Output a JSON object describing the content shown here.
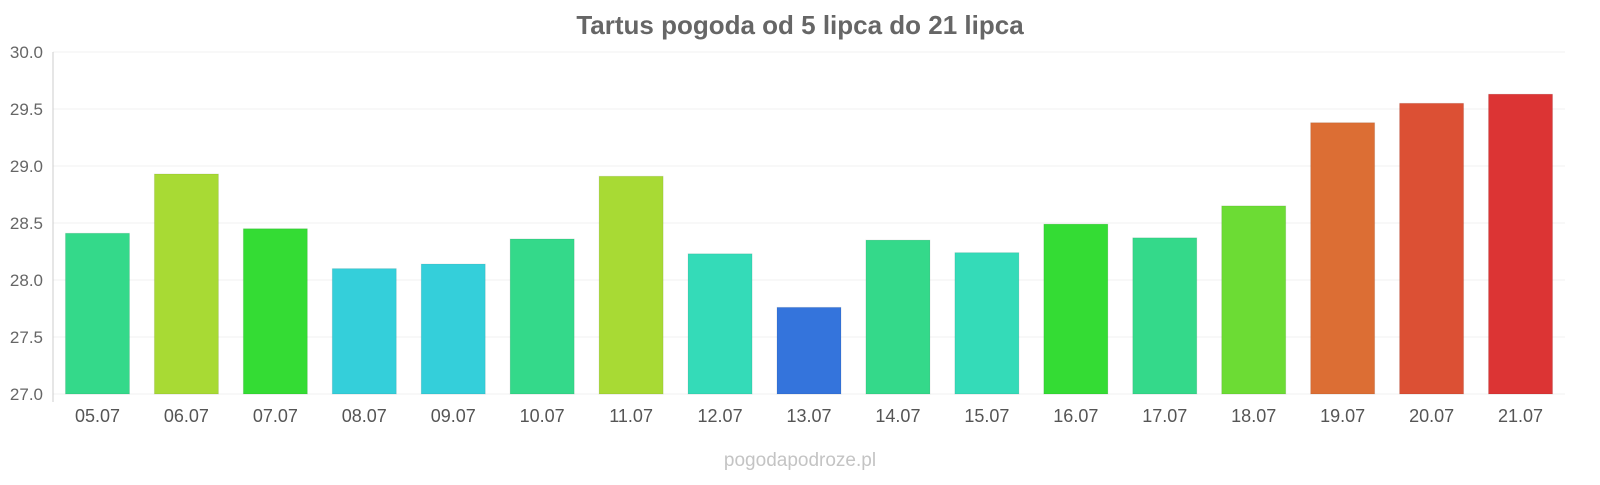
{
  "chart_data": {
    "type": "bar",
    "title": "Tartus pogoda od 5 lipca do 21 lipca",
    "xlabel": "",
    "ylabel": "",
    "categories": [
      "05.07",
      "06.07",
      "07.07",
      "08.07",
      "09.07",
      "10.07",
      "11.07",
      "12.07",
      "13.07",
      "14.07",
      "15.07",
      "16.07",
      "17.07",
      "18.07",
      "19.07",
      "20.07",
      "21.07"
    ],
    "values": [
      28.41,
      28.93,
      28.45,
      28.1,
      28.14,
      28.36,
      28.91,
      28.23,
      27.76,
      28.35,
      28.24,
      28.49,
      28.37,
      28.65,
      29.38,
      29.55,
      29.63
    ],
    "colors": [
      "#34d98a",
      "#a8da34",
      "#34dc34",
      "#34cfda",
      "#34cfda",
      "#34d98a",
      "#a8da34",
      "#34dbb8",
      "#3474dc",
      "#34d98a",
      "#34dbb8",
      "#34dc34",
      "#34d98a",
      "#6cdc34",
      "#dc6e34",
      "#dc5034",
      "#dc3434"
    ],
    "ylim": [
      27.0,
      30.0
    ],
    "yticks": [
      "27.0",
      "27.5",
      "28.0",
      "28.5",
      "29.0",
      "29.5",
      "30.0"
    ],
    "grid": true,
    "legend": "none"
  },
  "watermark": "pogodapodroze.pl"
}
